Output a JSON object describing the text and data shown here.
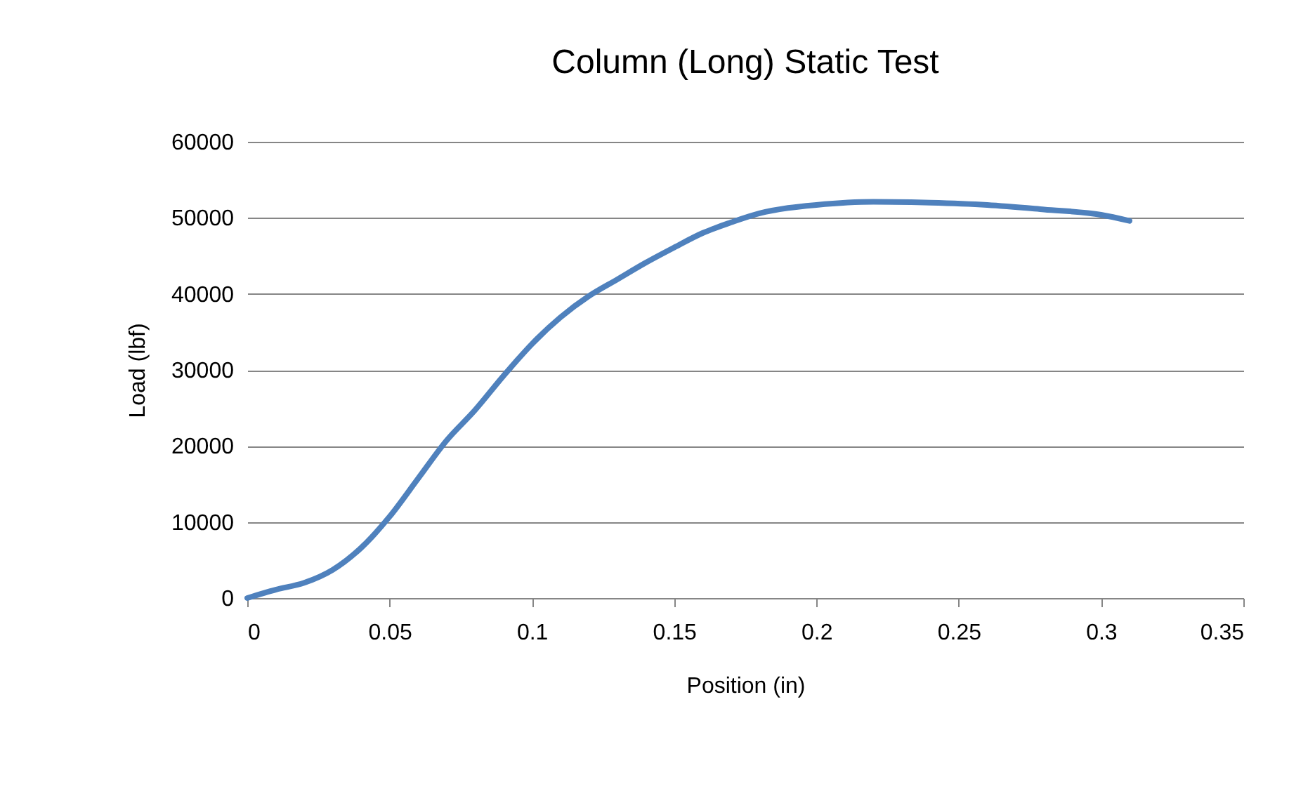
{
  "chart_data": {
    "type": "line",
    "title": "Column (Long) Static Test",
    "xlabel": "Position (in)",
    "ylabel": "Load (lbf)",
    "x": [
      0,
      0.01,
      0.02,
      0.03,
      0.04,
      0.05,
      0.06,
      0.07,
      0.08,
      0.09,
      0.1,
      0.11,
      0.12,
      0.13,
      0.14,
      0.15,
      0.16,
      0.17,
      0.18,
      0.19,
      0.2,
      0.22,
      0.24,
      0.26,
      0.28,
      0.3,
      0.31
    ],
    "series": [
      {
        "color": "#4f81bd",
        "values": [
          0,
          1100,
          2000,
          3700,
          6600,
          10700,
          15700,
          20700,
          24700,
          29200,
          33400,
          36900,
          39700,
          41900,
          44100,
          46100,
          48000,
          49400,
          50600,
          51300,
          51700,
          52100,
          52000,
          51700,
          51100,
          50400,
          49600
        ]
      }
    ],
    "xlim": [
      0,
      0.35
    ],
    "xticks": [
      0,
      0.05,
      0.1,
      0.15,
      0.2,
      0.25,
      0.3,
      0.35
    ],
    "ylim": [
      0,
      60000
    ],
    "yticks": [
      0,
      10000,
      20000,
      30000,
      40000,
      50000,
      60000
    ],
    "grid": "y",
    "legend": false,
    "marker": "none",
    "line_style": "solid"
  }
}
